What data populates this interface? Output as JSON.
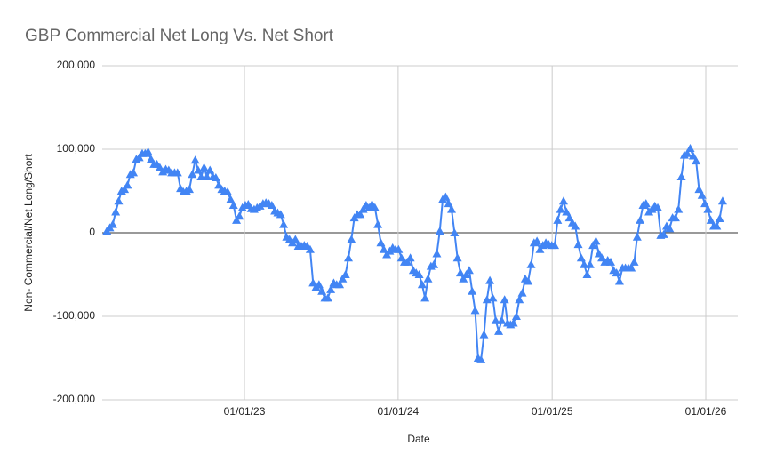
{
  "chart_data": {
    "type": "line",
    "title": "GBP Commercial Net Long Vs. Net Short",
    "x_label": "Date",
    "y_label": "Non- Commercial/Net Long/Short",
    "x": [
      "2022-02-08",
      "2022-02-15",
      "2022-02-22",
      "2022-03-01",
      "2022-03-08",
      "2022-03-15",
      "2022-03-22",
      "2022-03-29",
      "2022-04-05",
      "2022-04-12",
      "2022-04-19",
      "2022-04-26",
      "2022-05-03",
      "2022-05-10",
      "2022-05-17",
      "2022-05-24",
      "2022-05-31",
      "2022-06-07",
      "2022-06-14",
      "2022-06-21",
      "2022-06-28",
      "2022-07-05",
      "2022-07-12",
      "2022-07-19",
      "2022-07-26",
      "2022-08-02",
      "2022-08-09",
      "2022-08-16",
      "2022-08-23",
      "2022-08-30",
      "2022-09-06",
      "2022-09-13",
      "2022-09-20",
      "2022-09-27",
      "2022-10-04",
      "2022-10-11",
      "2022-10-18",
      "2022-10-25",
      "2022-11-01",
      "2022-11-08",
      "2022-11-15",
      "2022-11-22",
      "2022-11-29",
      "2022-12-06",
      "2022-12-13",
      "2022-12-20",
      "2022-12-27",
      "2023-01-03",
      "2023-01-10",
      "2023-01-17",
      "2023-01-24",
      "2023-01-31",
      "2023-02-07",
      "2023-02-14",
      "2023-02-21",
      "2023-02-28",
      "2023-03-07",
      "2023-03-14",
      "2023-03-21",
      "2023-03-28",
      "2023-04-04",
      "2023-04-11",
      "2023-04-18",
      "2023-04-25",
      "2023-05-02",
      "2023-05-09",
      "2023-05-16",
      "2023-05-23",
      "2023-05-30",
      "2023-06-06",
      "2023-06-13",
      "2023-06-20",
      "2023-06-27",
      "2023-07-04",
      "2023-07-11",
      "2023-07-18",
      "2023-07-25",
      "2023-08-01",
      "2023-08-08",
      "2023-08-15",
      "2023-08-22",
      "2023-08-29",
      "2023-09-05",
      "2023-09-12",
      "2023-09-19",
      "2023-09-26",
      "2023-10-03",
      "2023-10-10",
      "2023-10-17",
      "2023-10-24",
      "2023-10-31",
      "2023-11-07",
      "2023-11-14",
      "2023-11-21",
      "2023-11-28",
      "2023-12-05",
      "2023-12-12",
      "2023-12-19",
      "2023-12-26",
      "2024-01-02",
      "2024-01-09",
      "2024-01-16",
      "2024-01-23",
      "2024-01-30",
      "2024-02-06",
      "2024-02-13",
      "2024-02-20",
      "2024-02-27",
      "2024-03-05",
      "2024-03-12",
      "2024-03-19",
      "2024-03-26",
      "2024-04-02",
      "2024-04-09",
      "2024-04-16",
      "2024-04-23",
      "2024-04-30",
      "2024-05-07",
      "2024-05-14",
      "2024-05-21",
      "2024-05-28",
      "2024-06-04",
      "2024-06-11",
      "2024-06-18",
      "2024-06-25",
      "2024-07-02",
      "2024-07-09",
      "2024-07-16",
      "2024-07-23",
      "2024-07-30",
      "2024-08-06",
      "2024-08-13",
      "2024-08-20",
      "2024-08-27",
      "2024-09-03",
      "2024-09-10",
      "2024-09-17",
      "2024-09-24",
      "2024-10-01",
      "2024-10-08",
      "2024-10-15",
      "2024-10-22",
      "2024-10-29",
      "2024-11-05",
      "2024-11-12",
      "2024-11-19",
      "2024-11-26",
      "2024-12-03",
      "2024-12-10",
      "2024-12-17",
      "2024-12-24",
      "2024-12-31",
      "2025-01-07",
      "2025-01-14",
      "2025-01-21",
      "2025-01-28",
      "2025-02-04",
      "2025-02-11",
      "2025-02-18",
      "2025-02-25",
      "2025-03-04",
      "2025-03-11",
      "2025-03-18",
      "2025-03-25",
      "2025-04-01",
      "2025-04-08",
      "2025-04-15",
      "2025-04-22",
      "2025-04-29",
      "2025-05-06",
      "2025-05-13",
      "2025-05-20",
      "2025-05-27",
      "2025-06-03",
      "2025-06-10",
      "2025-06-17",
      "2025-06-24",
      "2025-07-01",
      "2025-07-08",
      "2025-07-15",
      "2025-07-22",
      "2025-07-29",
      "2025-08-05",
      "2025-08-12",
      "2025-08-19",
      "2025-08-26",
      "2025-09-02",
      "2025-09-09",
      "2025-09-16",
      "2025-09-23",
      "2025-09-30",
      "2025-10-07",
      "2025-10-14",
      "2025-10-21",
      "2025-10-28",
      "2025-11-04",
      "2025-11-11",
      "2025-11-18",
      "2025-11-25",
      "2025-12-02",
      "2025-12-09",
      "2025-12-16",
      "2025-12-23",
      "2025-12-30",
      "2026-01-06",
      "2026-01-13",
      "2026-01-20",
      "2026-01-27",
      "2026-02-03",
      "2026-02-10"
    ],
    "series": [
      {
        "name": "Non- Commercial/Net Long/Short",
        "color": "#4285f4",
        "values": [
          2000,
          6000,
          10000,
          25000,
          38000,
          50000,
          52000,
          57000,
          70000,
          72000,
          88000,
          90000,
          95000,
          95000,
          97000,
          88000,
          82000,
          82000,
          78000,
          73000,
          76000,
          75000,
          72000,
          72000,
          72000,
          53000,
          49000,
          50000,
          52000,
          70000,
          87000,
          75000,
          67000,
          78000,
          67000,
          75000,
          67000,
          66000,
          57000,
          52000,
          50000,
          49000,
          40000,
          33000,
          15000,
          20000,
          30000,
          33000,
          34000,
          29000,
          28000,
          30000,
          32000,
          35000,
          36000,
          35000,
          33000,
          26000,
          24000,
          22000,
          10000,
          -5000,
          -8000,
          -12000,
          -8000,
          -16000,
          -16000,
          -15000,
          -16000,
          -20000,
          -60000,
          -65000,
          -62000,
          -70000,
          -78000,
          -78000,
          -68000,
          -60000,
          -62000,
          -62000,
          -55000,
          -50000,
          -30000,
          -8000,
          18000,
          22000,
          22000,
          28000,
          33000,
          30000,
          34000,
          30000,
          10000,
          -12000,
          -20000,
          -26000,
          -22000,
          -18000,
          -20000,
          -20000,
          -30000,
          -35000,
          -35000,
          -30000,
          -45000,
          -48000,
          -50000,
          -62000,
          -78000,
          -55000,
          -40000,
          -38000,
          -25000,
          2000,
          40000,
          43000,
          35000,
          28000,
          0,
          -30000,
          -48000,
          -55000,
          -50000,
          -45000,
          -70000,
          -93000,
          -150000,
          -152000,
          -122000,
          -80000,
          -57000,
          -78000,
          -105000,
          -118000,
          -105000,
          -80000,
          -108000,
          -110000,
          -108000,
          -100000,
          -80000,
          -72000,
          -55000,
          -58000,
          -38000,
          -12000,
          -10000,
          -20000,
          -15000,
          -12000,
          -14000,
          -15000,
          -15000,
          15000,
          28000,
          38000,
          25000,
          18000,
          12000,
          8000,
          -14000,
          -30000,
          -38000,
          -50000,
          -38000,
          -15000,
          -10000,
          -25000,
          -30000,
          -35000,
          -33000,
          -35000,
          -45000,
          -48000,
          -58000,
          -42000,
          -42000,
          -42000,
          -42000,
          -35000,
          -5000,
          15000,
          33000,
          35000,
          25000,
          28000,
          32000,
          30000,
          -3000,
          -2000,
          8000,
          5000,
          18000,
          18000,
          28000,
          67000,
          93000,
          95000,
          101000,
          92000,
          86000,
          52000,
          45000,
          35000,
          28000,
          15000,
          8000,
          8000,
          17000,
          38000
        ]
      }
    ],
    "xlim": [
      "2022-01-28",
      "2026-03-18"
    ],
    "xticks": [
      {
        "value": "2023-01-01",
        "label": "01/01/23"
      },
      {
        "value": "2024-01-01",
        "label": "01/01/24"
      },
      {
        "value": "2025-01-01",
        "label": "01/01/25"
      },
      {
        "value": "2026-01-01",
        "label": "01/01/26"
      }
    ],
    "ylim": [
      -200000,
      200000
    ],
    "yticks": [
      {
        "value": -200000,
        "label": "-200,000"
      },
      {
        "value": -100000,
        "label": "-100,000"
      },
      0,
      {
        "value": 100000,
        "label": "100,000"
      },
      {
        "value": 200000,
        "label": "200,000"
      }
    ],
    "grid": true
  }
}
